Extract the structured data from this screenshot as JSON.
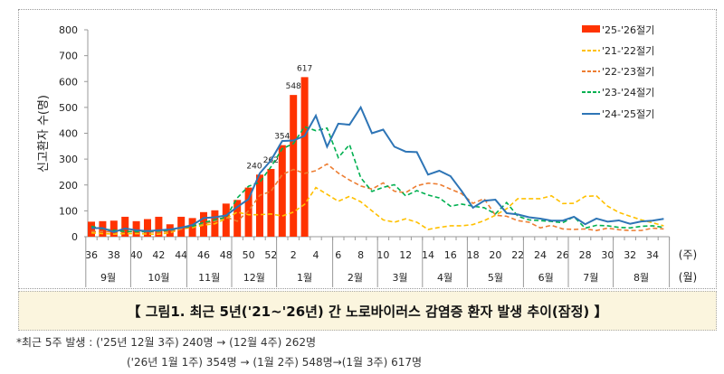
{
  "chart_data": {
    "type": "bar+line",
    "ylabel": "신고환자 수(명)",
    "xlabel_week_unit": "(주)",
    "xlabel_month_unit": "(월)",
    "ylim": [
      0,
      800
    ],
    "yticks": [
      0,
      100,
      200,
      300,
      400,
      500,
      600,
      700,
      800
    ],
    "weeks": [
      36,
      37,
      38,
      39,
      40,
      41,
      42,
      43,
      44,
      45,
      46,
      47,
      48,
      49,
      50,
      51,
      52,
      1,
      2,
      3,
      4,
      5,
      6,
      7,
      8,
      9,
      10,
      11,
      12,
      13,
      14,
      15,
      16,
      17,
      18,
      19,
      20,
      21,
      22,
      23,
      24,
      25,
      26,
      27,
      28,
      29,
      30,
      31,
      32,
      33,
      34,
      35
    ],
    "months": [
      {
        "label": "9월",
        "from": 36,
        "to": 39
      },
      {
        "label": "10월",
        "from": 40,
        "to": 44
      },
      {
        "label": "11월",
        "from": 45,
        "to": 48
      },
      {
        "label": "12월",
        "from": 49,
        "to": 52
      },
      {
        "label": "1월",
        "from": 1,
        "to": 5
      },
      {
        "label": "2월",
        "from": 6,
        "to": 9
      },
      {
        "label": "3월",
        "from": 10,
        "to": 13
      },
      {
        "label": "4월",
        "from": 14,
        "to": 17
      },
      {
        "label": "5월",
        "from": 18,
        "to": 22
      },
      {
        "label": "6월",
        "from": 23,
        "to": 26
      },
      {
        "label": "7월",
        "from": 27,
        "to": 30
      },
      {
        "label": "8월",
        "from": 31,
        "to": 35
      }
    ],
    "bar_series": {
      "name": "'25-'26절기",
      "color": "#ff3300",
      "values": [
        58,
        60,
        62,
        77,
        60,
        68,
        77,
        48,
        77,
        72,
        95,
        102,
        128,
        142,
        190,
        240,
        262,
        354,
        548,
        617
      ],
      "data_labels": [
        {
          "week": 51,
          "value": "240"
        },
        {
          "week": 52,
          "value": "262"
        },
        {
          "week": 1,
          "value": "354"
        },
        {
          "week": 2,
          "value": "548"
        },
        {
          "week": 3,
          "value": "617"
        }
      ]
    },
    "series": [
      {
        "name": "'21-'22절기",
        "color": "#ffc000",
        "dash": true,
        "values": [
          15,
          12,
          10,
          12,
          12,
          10,
          10,
          15,
          30,
          35,
          45,
          50,
          70,
          95,
          85,
          85,
          88,
          80,
          95,
          125,
          190,
          164,
          137,
          156,
          135,
          100,
          65,
          56,
          69,
          56,
          28,
          36,
          42,
          42,
          47,
          62,
          83,
          108,
          147,
          147,
          147,
          158,
          128,
          129,
          156,
          158,
          118,
          94,
          79,
          65,
          54,
          42
        ]
      },
      {
        "name": "'22-'23절기",
        "color": "#ed7d31",
        "dash": true,
        "values": [
          20,
          20,
          18,
          20,
          20,
          18,
          18,
          20,
          30,
          40,
          50,
          60,
          75,
          60,
          100,
          160,
          175,
          240,
          260,
          245,
          255,
          281,
          246,
          219,
          196,
          184,
          208,
          176,
          170,
          197,
          207,
          203,
          184,
          166,
          129,
          147,
          83,
          79,
          62,
          56,
          34,
          44,
          30,
          28,
          30,
          24,
          33,
          27,
          24,
          24,
          33,
          30
        ]
      },
      {
        "name": "'23-'24절기",
        "color": "#00b050",
        "dash": true,
        "values": [
          40,
          30,
          25,
          20,
          20,
          20,
          22,
          25,
          35,
          40,
          55,
          65,
          75,
          150,
          195,
          210,
          270,
          340,
          360,
          425,
          410,
          420,
          306,
          356,
          228,
          175,
          191,
          201,
          158,
          178,
          161,
          150,
          118,
          126,
          118,
          112,
          88,
          132,
          79,
          65,
          62,
          59,
          54,
          77,
          33,
          44,
          42,
          36,
          34,
          40,
          42,
          36
        ]
      },
      {
        "name": "'24-'25절기",
        "color": "#2e75b6",
        "dash": false,
        "values": [
          33,
          33,
          18,
          32,
          25,
          22,
          25,
          28,
          35,
          45,
          72,
          75,
          82,
          115,
          145,
          245,
          295,
          370,
          372,
          390,
          468,
          348,
          437,
          433,
          500,
          400,
          414,
          348,
          329,
          327,
          240,
          255,
          234,
          176,
          112,
          139,
          143,
          91,
          86,
          75,
          70,
          62,
          62,
          77,
          48,
          70,
          58,
          63,
          50,
          59,
          62,
          69
        ]
      }
    ]
  },
  "caption": "【 그림1. 최근 5년('21~'26년) 간 노로바이러스 감염증 환자 발생 추이(잠정) 】",
  "notes": [
    "*최근 5주 발생 : ('25년 12월 3주) 240명 → (12월 4주) 262명",
    "('26년 1월 1주) 354명 → (1월 2주) 548명→(1월 3주) 617명"
  ]
}
